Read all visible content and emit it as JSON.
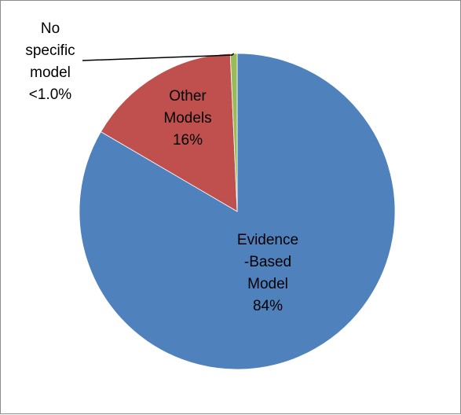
{
  "chart_data": {
    "type": "pie",
    "title": "",
    "slices": [
      {
        "name": "Evidence-Based Model",
        "value": 84,
        "label_lines": [
          "Evidence",
          "-Based",
          "Model",
          "84%"
        ],
        "color": "#4f81bd"
      },
      {
        "name": "Other Models",
        "value": 16,
        "label_lines": [
          "Other",
          "Models",
          "16%"
        ],
        "color": "#c0504d"
      },
      {
        "name": "No specific model",
        "value": 0.7,
        "label_lines": [
          "No",
          "specific",
          "model",
          "<1.0%"
        ],
        "color": "#9bbb59"
      }
    ],
    "start_angle_deg": 0,
    "direction": "clockwise",
    "legend": "none",
    "grid": false
  }
}
